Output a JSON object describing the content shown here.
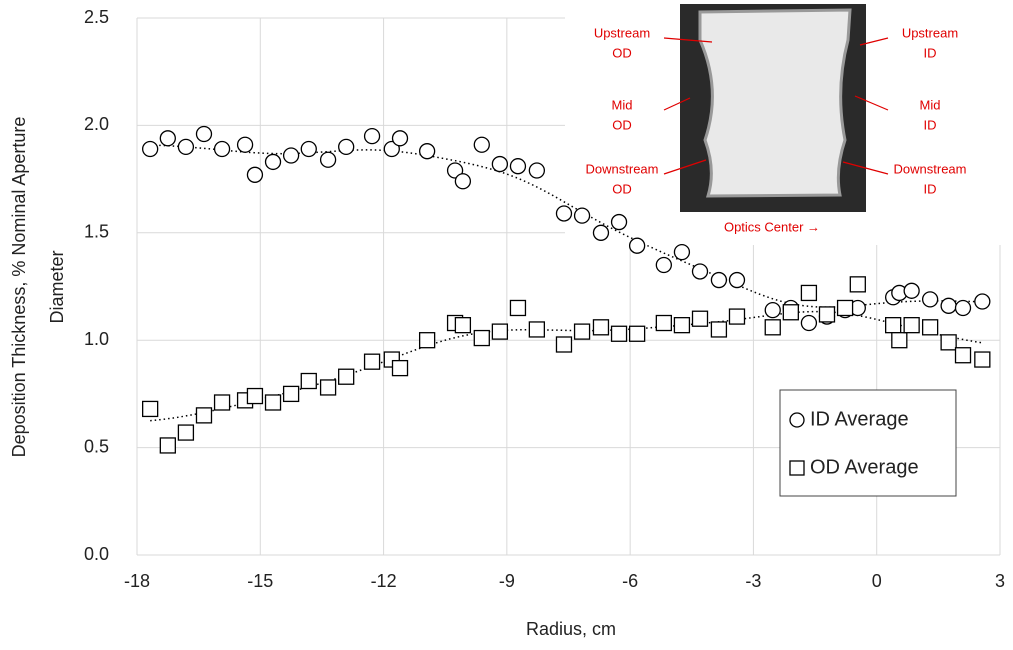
{
  "chart_data": {
    "type": "scatter",
    "x_label": "Radius, cm",
    "y_label": [
      "Deposition Thickness, % Nominal Aperture",
      "Diameter"
    ],
    "xlim": [
      -18,
      3
    ],
    "xticks": [
      -18,
      -15,
      -12,
      -9,
      -6,
      -3,
      0,
      3
    ],
    "ylim": [
      0,
      2.5
    ],
    "yticks": [
      {
        "value": 0,
        "label": "0.0"
      },
      0.5,
      {
        "value": 1,
        "label": "1.0"
      },
      1.5,
      {
        "value": 2,
        "label": "2.0"
      },
      2.5
    ],
    "grid": true,
    "trendline": true,
    "legend": "lower right",
    "series": [
      {
        "name": "ID Average",
        "marker": "circle",
        "color": "#000000",
        "x": [
          -17.68,
          -17.25,
          -16.81,
          -16.37,
          -15.93,
          -15.37,
          -15.13,
          -14.69,
          -14.25,
          -13.82,
          -13.35,
          -12.91,
          -12.28,
          -11.8,
          -11.6,
          -10.94,
          -10.26,
          -10.07,
          -9.61,
          -9.17,
          -8.73,
          -8.27,
          -7.61,
          -7.17,
          -6.71,
          -6.27,
          -5.83,
          -5.18,
          -4.74,
          -4.3,
          -3.84,
          -3.4,
          -2.53,
          -2.09,
          -1.65,
          -1.21,
          -0.77,
          -0.46,
          0.4,
          0.55,
          0.85,
          1.3,
          1.75,
          2.1,
          2.57
        ],
        "values": [
          1.89,
          1.94,
          1.9,
          1.96,
          1.89,
          1.91,
          1.77,
          1.83,
          1.86,
          1.89,
          1.84,
          1.9,
          1.95,
          1.89,
          1.94,
          1.88,
          1.79,
          1.74,
          1.91,
          1.82,
          1.81,
          1.79,
          1.59,
          1.58,
          1.5,
          1.55,
          1.44,
          1.35,
          1.41,
          1.32,
          1.28,
          1.28,
          1.14,
          1.15,
          1.08,
          1.11,
          1.14,
          1.15,
          1.2,
          1.22,
          1.23,
          1.19,
          1.16,
          1.15,
          1.18
        ]
      },
      {
        "name": "OD Average",
        "marker": "square",
        "color": "#000000",
        "x": [
          -17.68,
          -17.25,
          -16.81,
          -16.37,
          -15.93,
          -15.37,
          -15.13,
          -14.69,
          -14.25,
          -13.82,
          -13.35,
          -12.91,
          -12.28,
          -11.8,
          -11.6,
          -10.94,
          -10.26,
          -10.07,
          -9.61,
          -9.17,
          -8.73,
          -8.27,
          -7.61,
          -7.17,
          -6.71,
          -6.27,
          -5.83,
          -5.18,
          -4.74,
          -4.3,
          -3.84,
          -3.4,
          -2.53,
          -2.09,
          -1.65,
          -1.21,
          -0.77,
          -0.46,
          0.4,
          0.55,
          0.85,
          1.3,
          1.75,
          2.1,
          2.57
        ],
        "values": [
          0.68,
          0.51,
          0.57,
          0.65,
          0.71,
          0.72,
          0.74,
          0.71,
          0.75,
          0.81,
          0.78,
          0.83,
          0.9,
          0.91,
          0.87,
          1.0,
          1.08,
          1.07,
          1.01,
          1.04,
          1.15,
          1.05,
          0.98,
          1.04,
          1.06,
          1.03,
          1.03,
          1.08,
          1.07,
          1.1,
          1.05,
          1.11,
          1.06,
          1.13,
          1.22,
          1.12,
          1.15,
          1.26,
          1.07,
          1.0,
          1.07,
          1.06,
          0.99,
          0.93,
          0.91
        ]
      }
    ],
    "inset": {
      "annotations": [
        {
          "lines": [
            "Upstream",
            "OD"
          ]
        },
        {
          "lines": [
            "Mid",
            "OD"
          ]
        },
        {
          "lines": [
            "Downstream",
            "OD"
          ]
        },
        {
          "lines": [
            "Upstream",
            "ID"
          ]
        },
        {
          "lines": [
            "Mid",
            "ID"
          ]
        },
        {
          "lines": [
            "Downstream",
            "ID"
          ]
        }
      ],
      "caption": "Optics Center →"
    }
  }
}
